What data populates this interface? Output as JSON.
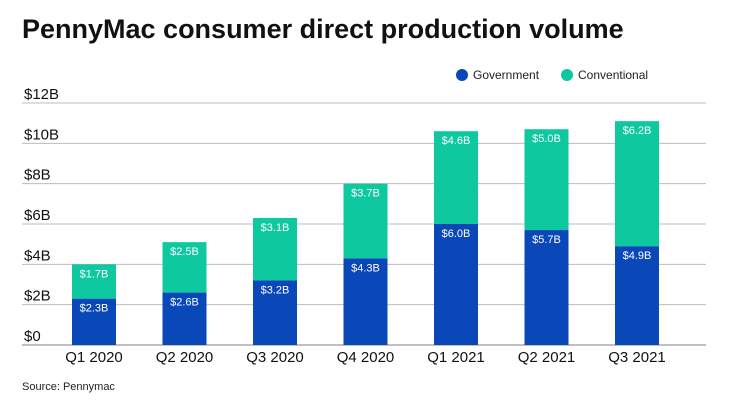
{
  "chart_data": {
    "type": "bar",
    "stacked": true,
    "title": "PennyMac consumer direct production volume",
    "source": "Source: Pennymac",
    "categories": [
      "Q1 2020",
      "Q2 2020",
      "Q3 2020",
      "Q4 2020",
      "Q1 2021",
      "Q2 2021",
      "Q3 2021"
    ],
    "series": [
      {
        "name": "Government",
        "color": "#0a47b8",
        "values": [
          2.3,
          2.6,
          3.2,
          4.3,
          6.0,
          5.7,
          4.9
        ],
        "labels": [
          "$2.3B",
          "$2.6B",
          "$3.2B",
          "$4.3B",
          "$6.0B",
          "$5.7B",
          "$4.9B"
        ]
      },
      {
        "name": "Conventional",
        "color": "#0ec8a0",
        "values": [
          1.7,
          2.5,
          3.1,
          3.7,
          4.6,
          5.0,
          6.2
        ],
        "labels": [
          "$1.7B",
          "$2.5B",
          "$3.1B",
          "$3.7B",
          "$4.6B",
          "$5.0B",
          "$6.2B"
        ]
      }
    ],
    "ylim": [
      0,
      12
    ],
    "yticks": [
      0,
      2,
      4,
      6,
      8,
      10,
      12
    ],
    "ytick_labels": [
      "$0",
      "$2B",
      "$4B",
      "$6B",
      "$8B",
      "$10B",
      "$12B"
    ],
    "grid": true,
    "legend_position": "top-right",
    "xlabel": "",
    "ylabel": ""
  }
}
